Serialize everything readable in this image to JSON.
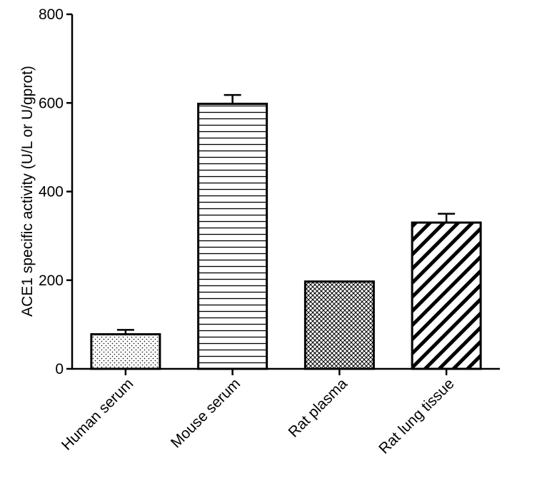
{
  "chart_data": {
    "type": "bar",
    "title": "",
    "xlabel": "",
    "ylabel": "ACE1 specific activity (U/L or U/gprot)",
    "ylim": [
      0,
      800
    ],
    "yticks": [
      "0",
      "200",
      "400",
      "600",
      "800"
    ],
    "categories": [
      "Human serum",
      "Mouse serum",
      "Rat plasma",
      "Rat lung tissue"
    ],
    "values": [
      78,
      598,
      197,
      330
    ],
    "errors": [
      10,
      20,
      0,
      20
    ],
    "patterns": [
      "dots",
      "horizontal-lines",
      "crosshatch",
      "diagonal-stripes"
    ],
    "grid": false,
    "legend": "none",
    "colors": {
      "bar_stroke": "#000000",
      "fill": "#ffffff",
      "axis": "#000000"
    }
  }
}
